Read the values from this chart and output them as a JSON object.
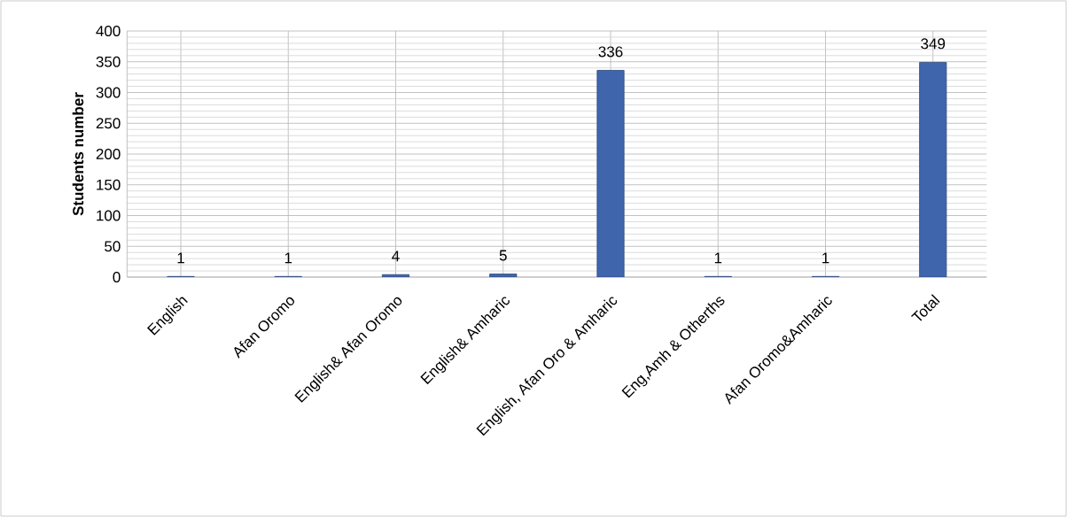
{
  "chart_data": {
    "type": "bar",
    "ylabel": "Students number",
    "categories": [
      "English",
      "Afan Oromo",
      "English& Afan Oromo",
      "English& Amharic",
      "English, Afan Oro & Amharic",
      "Eng,Amh & Otherths",
      "Afan Oromo&Amharic",
      "Total"
    ],
    "values": [
      1,
      1,
      4,
      5,
      336,
      1,
      1,
      349
    ],
    "color": "#3f65ad",
    "ylim": [
      0,
      400
    ],
    "yticks": [
      0,
      50,
      100,
      150,
      200,
      250,
      300,
      350,
      400
    ],
    "grid": true,
    "data_labels": true
  }
}
